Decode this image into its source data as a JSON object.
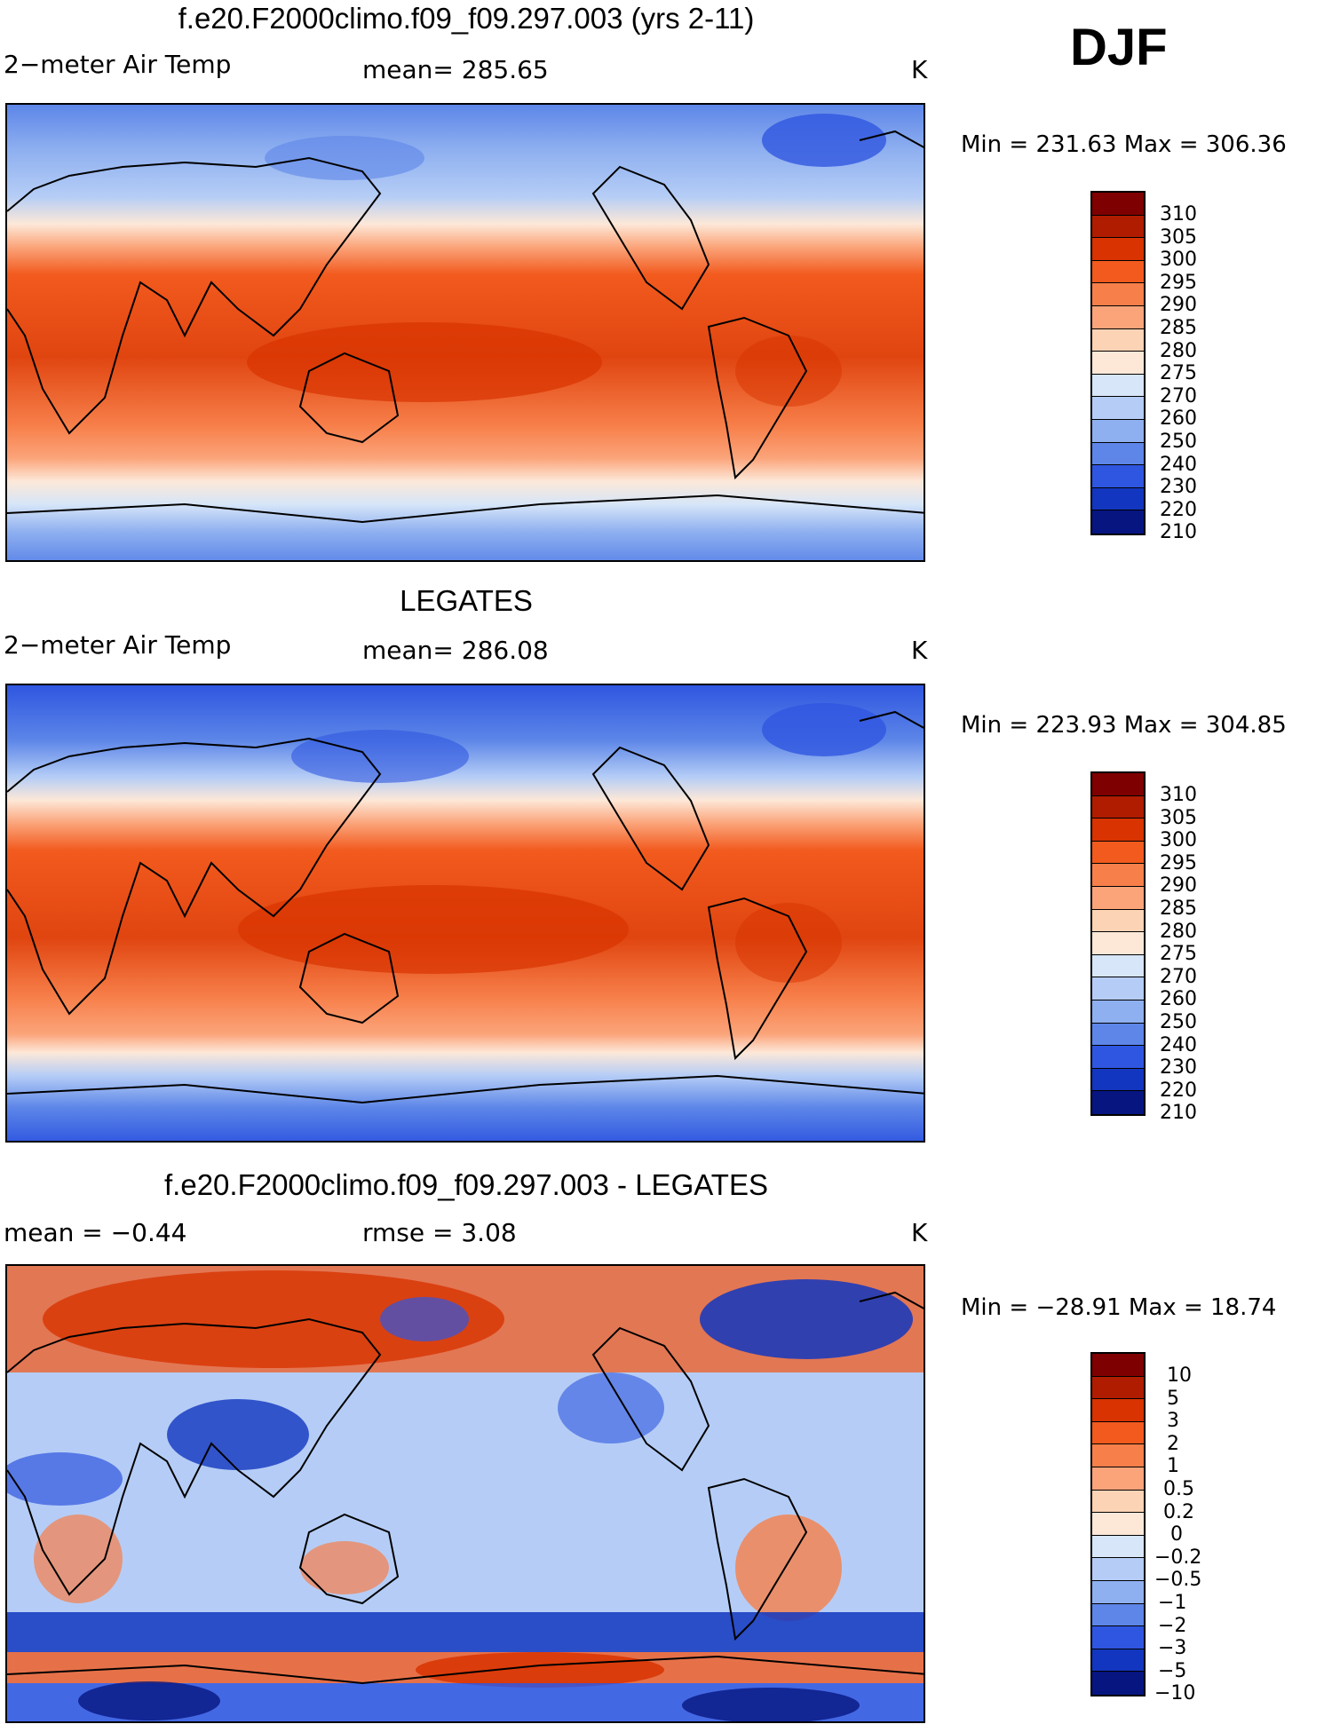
{
  "season": "DJF",
  "units": "K",
  "panels": [
    {
      "title": "f.e20.F2000climo.f09_f09.297.003 (yrs 2-11)",
      "variable": "2−meter Air Temp",
      "stat": "mean=  285.65",
      "minmax": "Min  =  231.63  Max  =  306.36",
      "levels": [
        "310",
        "305",
        "300",
        "295",
        "290",
        "285",
        "280",
        "275",
        "270",
        "260",
        "250",
        "240",
        "230",
        "220",
        "210"
      ],
      "colors": [
        "#7f0000",
        "#b01c00",
        "#d83300",
        "#f25a1e",
        "#f77f4a",
        "#fba47a",
        "#fdd3b5",
        "#fde8d8",
        "#d7e6f8",
        "#b5cdf6",
        "#8fb0f0",
        "#5d86e8",
        "#2f56e0",
        "#1236bf",
        "#061580"
      ]
    },
    {
      "title": "LEGATES",
      "variable": "2−meter Air Temp",
      "stat": "mean=  286.08",
      "minmax": "Min  =  223.93  Max  =  304.85",
      "levels": [
        "310",
        "305",
        "300",
        "295",
        "290",
        "285",
        "280",
        "275",
        "270",
        "260",
        "250",
        "240",
        "230",
        "220",
        "210"
      ],
      "colors": [
        "#7f0000",
        "#b01c00",
        "#d83300",
        "#f25a1e",
        "#f77f4a",
        "#fba47a",
        "#fdd3b5",
        "#fde8d8",
        "#d7e6f8",
        "#b5cdf6",
        "#8fb0f0",
        "#5d86e8",
        "#2f56e0",
        "#1236bf",
        "#061580"
      ]
    },
    {
      "title": "f.e20.F2000climo.f09_f09.297.003 - LEGATES",
      "variable": "mean =   −0.44",
      "stat": "rmse =     3.08",
      "minmax": "Min  =  −28.91  Max  =    18.74",
      "levels": [
        "10",
        "5",
        "3",
        "2",
        "1",
        "0.5",
        "0.2",
        "0",
        "−0.2",
        "−0.5",
        "−1",
        "−2",
        "−3",
        "−5",
        "−10"
      ],
      "colors": [
        "#7f0000",
        "#b01c00",
        "#d83300",
        "#f25a1e",
        "#f77f4a",
        "#fba47a",
        "#fdd3b5",
        "#fde8d8",
        "#d7e6f8",
        "#b5cdf6",
        "#8fb0f0",
        "#5d86e8",
        "#2f56e0",
        "#1236bf",
        "#061580"
      ]
    }
  ]
}
